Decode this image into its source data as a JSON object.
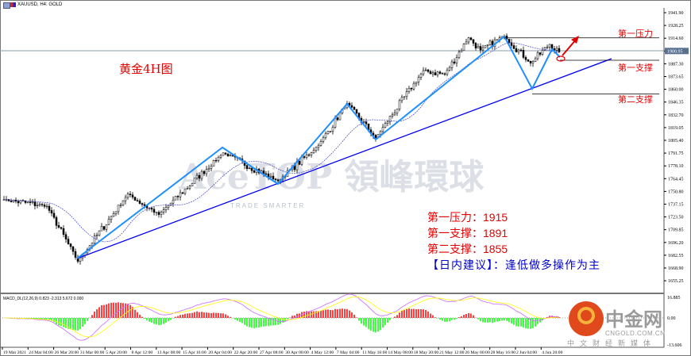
{
  "window": {
    "title": "XAUUSD, H4:  GOLD"
  },
  "chart_title": "黄金4H图",
  "watermark": {
    "brand": "AceTOP 領峰環球",
    "tagline": "TRADE SMARTER"
  },
  "levels": {
    "resistance1": {
      "label": "第一压力",
      "price": 1915
    },
    "support1": {
      "label": "第一支撑",
      "price": 1891
    },
    "support2": {
      "label": "第二支撑",
      "price": 1855
    }
  },
  "info": {
    "line1": "第一压力：1915",
    "line2": "第一支撑：1891",
    "line3": "第二支撑：1855",
    "advice": "【日内建议】：逢低做多操作为主"
  },
  "logo": {
    "name": "中金网",
    "domain": "CNGOLD.COM.CN",
    "slogan": "中文财经新媒体"
  },
  "colors": {
    "bull": "#000000",
    "bear": "#000000",
    "trend": "#0000ff",
    "zigzag": "#1e90ff",
    "levels": "#e00000",
    "hist_up": "#ff0000",
    "hist_down": "#00ff00",
    "signal": "#ffff00",
    "macd": "#cc66ff"
  },
  "chart_data": {
    "type": "candlestick",
    "symbol": "XAUUSD",
    "timeframe": "H4",
    "current_price": "1900.95",
    "ylim": [
      1650,
      1950
    ],
    "y_ticks": [
      "1941.90",
      "1928.25",
      "1914.60",
      "1900.95",
      "1887.30",
      "1873.65",
      "1860.00",
      "1846.35",
      "1832.70",
      "1819.05",
      "1805.40",
      "1791.75",
      "1778.10",
      "1764.45",
      "1750.80",
      "1737.15",
      "1723.50",
      "1709.85",
      "1696.20",
      "1682.55",
      "1668.90",
      "1655.25"
    ],
    "x_ticks": [
      "19 Mar 2021",
      "24 Mar 04:00",
      "26 Mar 20:00",
      "31 Mar 00:00",
      "5 Apr 20:00",
      "8 Apr 12:00",
      "13 Apr 08:00",
      "15 Apr 16:00",
      "20 Apr 04:00",
      "22 Apr 20:00",
      "27 Apr 08:00",
      "30 Apr 00:00",
      "4 May 12:00",
      "7 May 04:00",
      "11 May 16:00",
      "14 May 08:00",
      "18 May 20:00",
      "21 May 12:00",
      "26 May 00:00",
      "28 May 16:00",
      "2 Jun 04:00",
      "4 Jun 20:00"
    ],
    "swing_points": [
      [
        0,
        1742
      ],
      [
        18,
        1735
      ],
      [
        31,
        1676
      ],
      [
        52,
        1748
      ],
      [
        65,
        1726
      ],
      [
        92,
        1792
      ],
      [
        115,
        1762
      ],
      [
        132,
        1800
      ],
      [
        144,
        1845
      ],
      [
        156,
        1808
      ],
      [
        176,
        1880
      ],
      [
        185,
        1876
      ],
      [
        195,
        1915
      ],
      [
        200,
        1902
      ],
      [
        210,
        1917
      ],
      [
        221,
        1888
      ],
      [
        229,
        1908
      ],
      [
        233,
        1900
      ]
    ],
    "macd": {
      "label": "MACD_DL(12,26,9) 0.823 -2.313 5.672 0.000",
      "y_ticks": [
        "16.885",
        "0.00",
        "-13.606"
      ]
    }
  }
}
